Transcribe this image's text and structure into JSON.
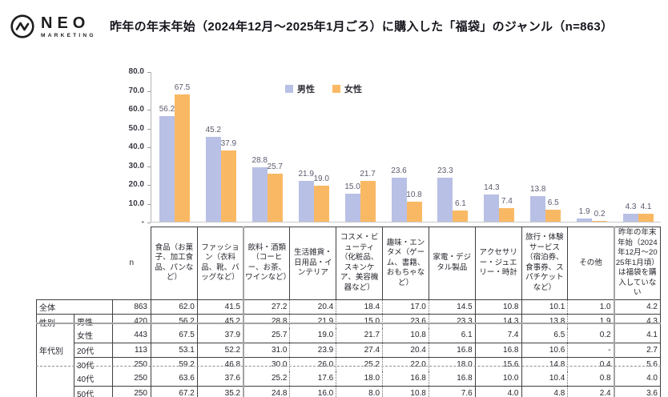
{
  "logo": {
    "name": "NEO",
    "sub": "MARKETING"
  },
  "title": "昨年の年末年始（2024年12月～2025年1月ごろ）に購入した「福袋」のジャンル（n=863）",
  "chart_data": {
    "type": "bar",
    "title": "昨年の年末年始（2024年12月～2025年1月ごろ）に購入した「福袋」のジャンル（n=863）",
    "categories": [
      "食品（お菓子、加工食品、パンなど）",
      "ファッション（衣料品、靴、バッグなど）",
      "飲料・酒類（コーヒー、お茶、ワインなど）",
      "生活雑貨・日用品・インテリア",
      "コスメ・ビューティ（化粧品、スキンケア、美容機器など）",
      "趣味・エンタメ（ゲーム、書籍、おもちゃなど）",
      "家電・デジタル製品",
      "アクセサリー・ジュエリー・時計",
      "旅行・体験サービス（宿泊券、食事券、スパチケットなど）",
      "その他",
      "昨年の年末年始（2024年12月～2025年1月頃）は福袋を購入していない"
    ],
    "series": [
      {
        "name": "男性",
        "color": "#b9c0e5",
        "values": [
          56.2,
          45.2,
          28.8,
          21.9,
          15.0,
          23.6,
          23.3,
          14.3,
          13.8,
          1.9,
          4.3
        ]
      },
      {
        "name": "女性",
        "color": "#f9b964",
        "values": [
          67.5,
          37.9,
          25.7,
          19.0,
          21.7,
          10.8,
          6.1,
          7.4,
          6.5,
          0.2,
          4.1
        ]
      }
    ],
    "ylim": [
      0,
      80
    ],
    "ytick_labels": [
      "80.0",
      "70.0",
      "60.0",
      "50.0",
      "40.0",
      "30.0",
      "20.0",
      "10.0",
      "-"
    ],
    "grid": false,
    "legend_position": "top-inside-center"
  },
  "table": {
    "n_header": "n",
    "columns": [
      "食品（お菓子、加工食品、パンなど）",
      "ファッション（衣料品、靴、バッグなど）",
      "飲料・酒類（コーヒー、お茶、ワインなど）",
      "生活雑貨・日用品・インテリア",
      "コスメ・ビューティ（化粧品、スキンケア、美容機器など）",
      "趣味・エンタメ（ゲーム、書籍、おもちゃなど）",
      "家電・デジタル製品",
      "アクセサリー・ジュエリー・時計",
      "旅行・体験サービス（宿泊券、食事券、スパチケットなど）",
      "その他",
      "昨年の年末年始（2024年12月～2025年1月頃）は福袋を購入していない"
    ],
    "rows": [
      {
        "merged_label": "全体",
        "n": "863",
        "values": [
          "62.0",
          "41.5",
          "27.2",
          "20.4",
          "18.4",
          "17.0",
          "14.5",
          "10.8",
          "10.1",
          "1.0",
          "4.2"
        ]
      },
      {
        "group": "性別",
        "span": 2,
        "label": "男性",
        "n": "420",
        "values": [
          "56.2",
          "45.2",
          "28.8",
          "21.9",
          "15.0",
          "23.6",
          "23.3",
          "14.3",
          "13.8",
          "1.9",
          "4.3"
        ]
      },
      {
        "label": "女性",
        "n": "443",
        "values": [
          "67.5",
          "37.9",
          "25.7",
          "19.0",
          "21.7",
          "10.8",
          "6.1",
          "7.4",
          "6.5",
          "0.2",
          "4.1"
        ]
      },
      {
        "group": "年代別",
        "span": 4,
        "label": "20代",
        "n": "113",
        "values": [
          "53.1",
          "52.2",
          "31.0",
          "23.9",
          "27.4",
          "20.4",
          "16.8",
          "16.8",
          "10.6",
          "-",
          "2.7"
        ]
      },
      {
        "label": "30代",
        "n": "250",
        "values": [
          "59.2",
          "46.8",
          "30.0",
          "26.0",
          "25.2",
          "22.0",
          "18.0",
          "15.6",
          "14.8",
          "0.4",
          "5.6"
        ]
      },
      {
        "label": "40代",
        "n": "250",
        "values": [
          "63.6",
          "37.6",
          "25.2",
          "17.6",
          "18.0",
          "16.8",
          "16.8",
          "10.0",
          "10.4",
          "0.8",
          "4.0"
        ]
      },
      {
        "label": "50代",
        "n": "250",
        "values": [
          "67.2",
          "35.2",
          "24.8",
          "16.0",
          "8.0",
          "10.8",
          "7.6",
          "4.0",
          "4.8",
          "2.4",
          "3.6"
        ]
      }
    ]
  },
  "colors": {
    "male_bar": "#b9c0e5",
    "female_bar": "#f9b964",
    "table_border": "#404040",
    "page_break_gray": "#a3a3a3"
  }
}
